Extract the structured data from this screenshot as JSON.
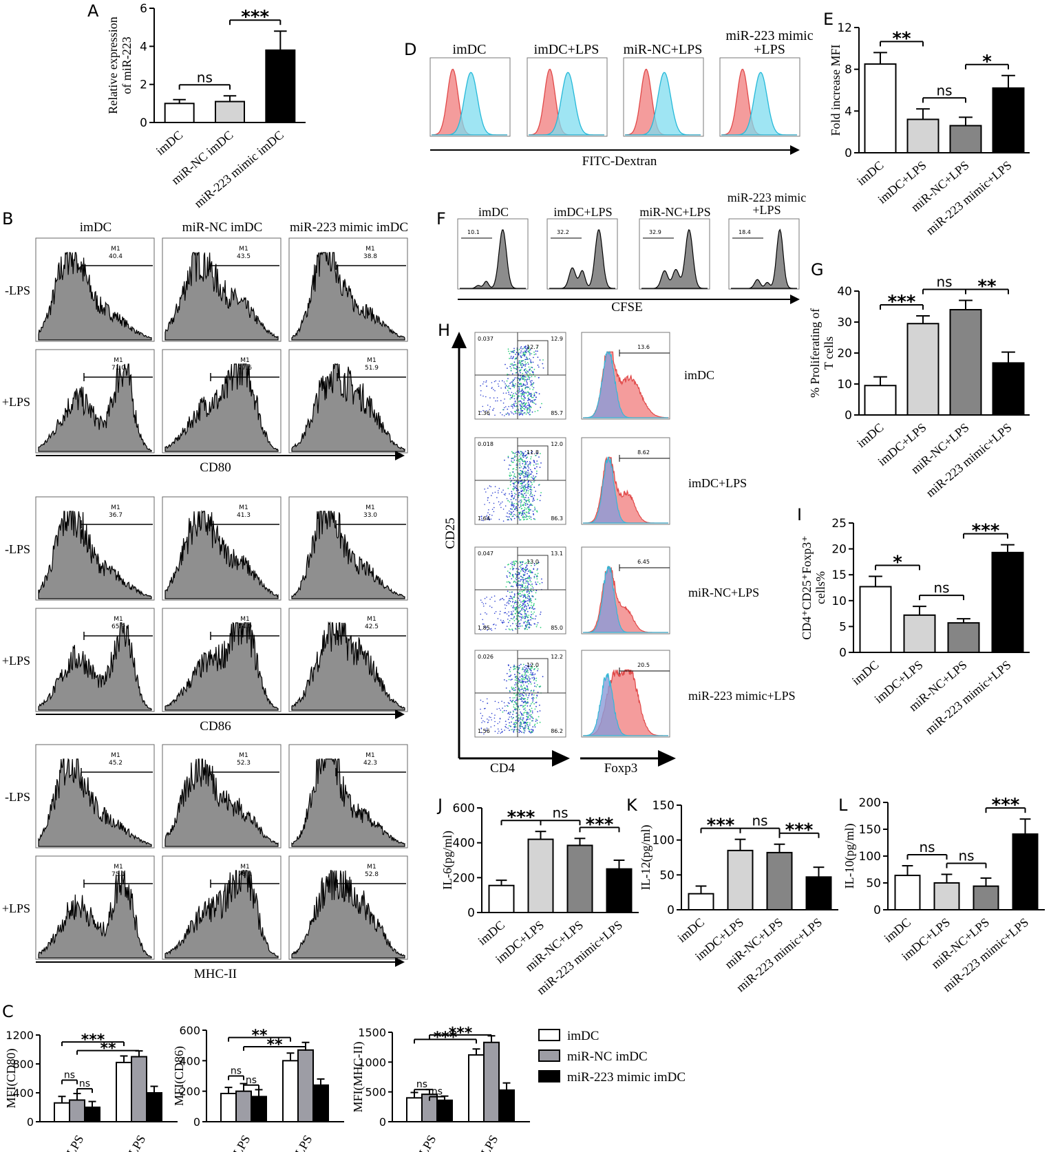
{
  "colors": {
    "white": "#ffffff",
    "light_grey": "#d4d4d4",
    "mid_grey": "#858585",
    "dark_grey": "#9d9da5",
    "black": "#000000",
    "red_hist": "#f28b8b",
    "cyan_hist": "#7fdcef",
    "hist_fill": "#8f8f8f",
    "dot_blue": "#2b3fd0",
    "dot_green": "#2ecf7c",
    "foxp3_blue": "#8a9bd8"
  },
  "panel_letters": [
    "A",
    "B",
    "C",
    "D",
    "E",
    "F",
    "G",
    "H",
    "I",
    "J",
    "K",
    "L"
  ],
  "panel_B": {
    "column_titles": [
      "imDC",
      "miR-NC imDC",
      "miR-223 mimic imDC"
    ],
    "row_labels": [
      "-LPS",
      "+LPS"
    ],
    "gate_label": "M1",
    "markers": [
      {
        "name": "CD80",
        "values": [
          [
            "40.4",
            "43.5",
            "38.8"
          ],
          [
            "71.0",
            "77.6",
            "51.9"
          ]
        ]
      },
      {
        "name": "CD86",
        "values": [
          [
            "36.7",
            "41.3",
            "33.0"
          ],
          [
            "65.9",
            "74.0",
            "42.5"
          ]
        ]
      },
      {
        "name": "MHC-II",
        "values": [
          [
            "45.2",
            "52.3",
            "42.3"
          ],
          [
            "75.1",
            "78.9",
            "52.8"
          ]
        ]
      }
    ]
  },
  "panel_D": {
    "titles": [
      "imDC",
      "imDC+LPS",
      "miR-NC+LPS",
      "miR-223 mimic",
      "+LPS"
    ],
    "xlabel": "FITC-Dextran"
  },
  "panel_F": {
    "titles": [
      "imDC",
      "imDC+LPS",
      "miR-NC+LPS",
      "miR-223 mimic",
      "+LPS"
    ],
    "gate_values": [
      "10.1",
      "32.2",
      "32.9",
      "18.4"
    ],
    "xlabel": "CFSE"
  },
  "panel_H": {
    "ylabel": "CD25",
    "xlabel_dot": "CD4",
    "xlabel_hist": "Foxp3",
    "rows": [
      {
        "label": "imDC",
        "q": [
          "0.037",
          "12.9",
          "1.36",
          "85.7"
        ],
        "gate": "12.7",
        "hist_gate": "13.6"
      },
      {
        "label": "imDC+LPS",
        "q": [
          "0.018",
          "12.0",
          "1.64",
          "86.3"
        ],
        "gate": "11.8",
        "hist_gate": "8.62"
      },
      {
        "label": "miR-NC+LPS",
        "q": [
          "0.047",
          "13.1",
          "1.85",
          "85.0"
        ],
        "gate": "13.0",
        "hist_gate": "6.45"
      },
      {
        "label": "miR-223 mimic+LPS",
        "q": [
          "0.026",
          "12.2",
          "1.56",
          "86.2"
        ],
        "gate": "12.0",
        "hist_gate": "20.5"
      }
    ]
  },
  "panel_C_legend": [
    "imDC",
    "miR-NC imDC",
    "miR-223 mimic imDC"
  ],
  "chart_data": [
    {
      "id": "A",
      "type": "bar",
      "title": "",
      "ylabel": "Relative expression of  miR-223",
      "ylabel_lines": [
        "Relative expression",
        "of  miR-223"
      ],
      "categories": [
        "imDC",
        "miR-NC imDC",
        "miR-223 mimic imDC"
      ],
      "values": [
        1.0,
        1.1,
        3.8
      ],
      "errors": [
        0.2,
        0.3,
        1.0
      ],
      "ylim": [
        0,
        6
      ],
      "yticks": [
        "0",
        "2",
        "4",
        "6"
      ],
      "fills": [
        "white",
        "light_grey",
        "black"
      ],
      "sig": [
        {
          "from": 0,
          "to": 1,
          "text": "ns"
        },
        {
          "from": 1,
          "to": 2,
          "text": "***"
        }
      ]
    },
    {
      "id": "E",
      "type": "bar",
      "ylabel": "Fold increase MFI",
      "categories": [
        "imDC",
        "imDC+LPS",
        "miR-NC+LPS",
        "miR-223 mimic+LPS"
      ],
      "values": [
        8.5,
        3.2,
        2.6,
        6.2
      ],
      "errors": [
        1.1,
        1.0,
        0.8,
        1.2
      ],
      "ylim": [
        0,
        12
      ],
      "yticks": [
        "0",
        "4",
        "8",
        "12"
      ],
      "fills": [
        "white",
        "light_grey",
        "mid_grey",
        "black"
      ],
      "sig": [
        {
          "from": 0,
          "to": 1,
          "text": "**"
        },
        {
          "from": 1,
          "to": 2,
          "text": "ns"
        },
        {
          "from": 2,
          "to": 3,
          "text": "*"
        }
      ]
    },
    {
      "id": "G",
      "type": "bar",
      "ylabel_lines": [
        "% Proliferating of",
        "T cells"
      ],
      "categories": [
        "imDC",
        "imDC+LPS",
        "miR-NC+LPS",
        "miR-223 mimic+LPS"
      ],
      "values": [
        9.5,
        29.5,
        34.0,
        16.8
      ],
      "errors": [
        2.8,
        2.5,
        3.0,
        3.5
      ],
      "ylim": [
        0,
        40
      ],
      "yticks": [
        "0",
        "10",
        "20",
        "30",
        "40"
      ],
      "fills": [
        "white",
        "light_grey",
        "mid_grey",
        "black"
      ],
      "sig": [
        {
          "from": 0,
          "to": 1,
          "text": "***"
        },
        {
          "from": 1,
          "to": 2,
          "text": "ns"
        },
        {
          "from": 2,
          "to": 3,
          "text": "**"
        }
      ]
    },
    {
      "id": "I",
      "type": "bar",
      "ylabel_lines": [
        "CD4⁺CD25⁺Foxp3⁺",
        "cells%"
      ],
      "categories": [
        "imDC",
        "imDC+LPS",
        "miR-NC+LPS",
        "miR-223 mimic+LPS"
      ],
      "values": [
        12.7,
        7.2,
        5.7,
        19.3
      ],
      "errors": [
        2.0,
        1.7,
        0.8,
        1.5
      ],
      "ylim": [
        0,
        25
      ],
      "yticks": [
        "0",
        "5",
        "10",
        "15",
        "20",
        "25"
      ],
      "fills": [
        "white",
        "light_grey",
        "mid_grey",
        "black"
      ],
      "sig": [
        {
          "from": 0,
          "to": 1,
          "text": "*"
        },
        {
          "from": 1,
          "to": 2,
          "text": "ns"
        },
        {
          "from": 2,
          "to": 3,
          "text": "***"
        }
      ]
    },
    {
      "id": "J",
      "type": "bar",
      "ylabel": "IL-6(pg/ml)",
      "categories": [
        "imDC",
        "imDC+LPS",
        "miR-NC+LPS",
        "miR-223 mimic+LPS"
      ],
      "values": [
        155,
        420,
        385,
        250
      ],
      "errors": [
        30,
        45,
        40,
        50
      ],
      "ylim": [
        0,
        600
      ],
      "yticks": [
        "0",
        "200",
        "400",
        "600"
      ],
      "fills": [
        "white",
        "light_grey",
        "mid_grey",
        "black"
      ],
      "sig": [
        {
          "from": 0,
          "to": 1,
          "text": "***"
        },
        {
          "from": 1,
          "to": 2,
          "text": "ns"
        },
        {
          "from": 2,
          "to": 3,
          "text": "***"
        }
      ]
    },
    {
      "id": "K",
      "type": "bar",
      "ylabel": "IL-12(pg/ml)",
      "categories": [
        "imDC",
        "imDC+LPS",
        "miR-NC+LPS",
        "miR-223 mimic+LPS"
      ],
      "values": [
        23,
        85,
        82,
        47
      ],
      "errors": [
        11,
        16,
        12,
        14
      ],
      "ylim": [
        0,
        150
      ],
      "yticks": [
        "0",
        "50",
        "100",
        "150"
      ],
      "fills": [
        "white",
        "light_grey",
        "mid_grey",
        "black"
      ],
      "sig": [
        {
          "from": 0,
          "to": 1,
          "text": "***"
        },
        {
          "from": 1,
          "to": 2,
          "text": "ns"
        },
        {
          "from": 2,
          "to": 3,
          "text": "***"
        }
      ]
    },
    {
      "id": "L",
      "type": "bar",
      "ylabel": "IL-10(pg/ml)",
      "categories": [
        "imDC",
        "imDC+LPS",
        "miR-NC+LPS",
        "miR-223 mimic+LPS"
      ],
      "values": [
        64,
        50,
        44,
        141
      ],
      "errors": [
        18,
        16,
        15,
        28
      ],
      "ylim": [
        0,
        200
      ],
      "yticks": [
        "0",
        "50",
        "100",
        "150",
        "200"
      ],
      "fills": [
        "white",
        "light_grey",
        "mid_grey",
        "black"
      ],
      "sig": [
        {
          "from": 0,
          "to": 1,
          "text": "ns"
        },
        {
          "from": 1,
          "to": 2,
          "text": "ns"
        },
        {
          "from": 2,
          "to": 3,
          "text": "***"
        }
      ]
    },
    {
      "id": "C1",
      "type": "bar",
      "ylabel": "MFI(CD80)",
      "categories": [
        "-LPS",
        "+LPS"
      ],
      "series": [
        {
          "name": "imDC",
          "values": [
            260,
            820
          ],
          "errors": [
            90,
            90
          ]
        },
        {
          "name": "miR-NC imDC",
          "values": [
            300,
            900
          ],
          "errors": [
            90,
            80
          ]
        },
        {
          "name": "miR-223 mimic imDC",
          "values": [
            200,
            400
          ],
          "errors": [
            80,
            90
          ]
        }
      ],
      "ylim": [
        0,
        1200
      ],
      "yticks": [
        "0",
        "400",
        "800",
        "1200"
      ],
      "fills": [
        "white",
        "dark_grey",
        "black"
      ],
      "sig": [
        {
          "a": [
            0,
            0
          ],
          "b": [
            1,
            0
          ],
          "text": "***",
          "level": 0.92
        },
        {
          "a": [
            0,
            1
          ],
          "b": [
            1,
            1
          ],
          "text": "**",
          "level": 0.82
        },
        {
          "a": [
            0,
            0
          ],
          "b": [
            0,
            1
          ],
          "text": "ns",
          "level": 0.48
        },
        {
          "a": [
            0,
            1
          ],
          "b": [
            0,
            2
          ],
          "text": "ns",
          "level": 0.38
        }
      ]
    },
    {
      "id": "C2",
      "type": "bar",
      "ylabel": "MFI(CD86)",
      "categories": [
        "-LPS",
        "+LPS"
      ],
      "series": [
        {
          "name": "imDC",
          "values": [
            185,
            400
          ],
          "errors": [
            40,
            50
          ]
        },
        {
          "name": "miR-NC imDC",
          "values": [
            200,
            470
          ],
          "errors": [
            50,
            50
          ]
        },
        {
          "name": "miR-223 mimic imDC",
          "values": [
            165,
            240
          ],
          "errors": [
            45,
            40
          ]
        }
      ],
      "ylim": [
        0,
        600
      ],
      "yticks": [
        "0",
        "200",
        "400",
        "600"
      ],
      "fills": [
        "white",
        "dark_grey",
        "black"
      ],
      "sig": [
        {
          "a": [
            0,
            0
          ],
          "b": [
            1,
            0
          ],
          "text": "**",
          "level": 0.92
        },
        {
          "a": [
            0,
            1
          ],
          "b": [
            1,
            1
          ],
          "text": "**",
          "level": 0.82
        },
        {
          "a": [
            0,
            0
          ],
          "b": [
            0,
            1
          ],
          "text": "ns",
          "level": 0.5
        },
        {
          "a": [
            0,
            1
          ],
          "b": [
            0,
            2
          ],
          "text": "ns",
          "level": 0.4
        }
      ]
    },
    {
      "id": "C3",
      "type": "bar",
      "ylabel": "MFI(MHC-II)",
      "categories": [
        "-LPS",
        "+LPS"
      ],
      "series": [
        {
          "name": "imDC",
          "values": [
            400,
            1120
          ],
          "errors": [
            90,
            100
          ]
        },
        {
          "name": "miR-NC imDC",
          "values": [
            460,
            1330
          ],
          "errors": [
            80,
            110
          ]
        },
        {
          "name": "miR-223 mimic imDC",
          "values": [
            360,
            530
          ],
          "errors": [
            70,
            120
          ]
        }
      ],
      "ylim": [
        0,
        1500
      ],
      "yticks": [
        "0",
        "500",
        "1000",
        "1500"
      ],
      "fills": [
        "white",
        "dark_grey",
        "black"
      ],
      "sig": [
        {
          "a": [
            0,
            0
          ],
          "b": [
            1,
            0
          ],
          "text": "***",
          "level": 0.92
        },
        {
          "a": [
            0,
            1
          ],
          "b": [
            1,
            1
          ],
          "text": "***",
          "level": 0.97
        },
        {
          "a": [
            0,
            0
          ],
          "b": [
            0,
            1
          ],
          "text": "ns",
          "level": 0.36
        },
        {
          "a": [
            0,
            1
          ],
          "b": [
            0,
            2
          ],
          "text": "ns",
          "level": 0.28
        }
      ]
    }
  ]
}
